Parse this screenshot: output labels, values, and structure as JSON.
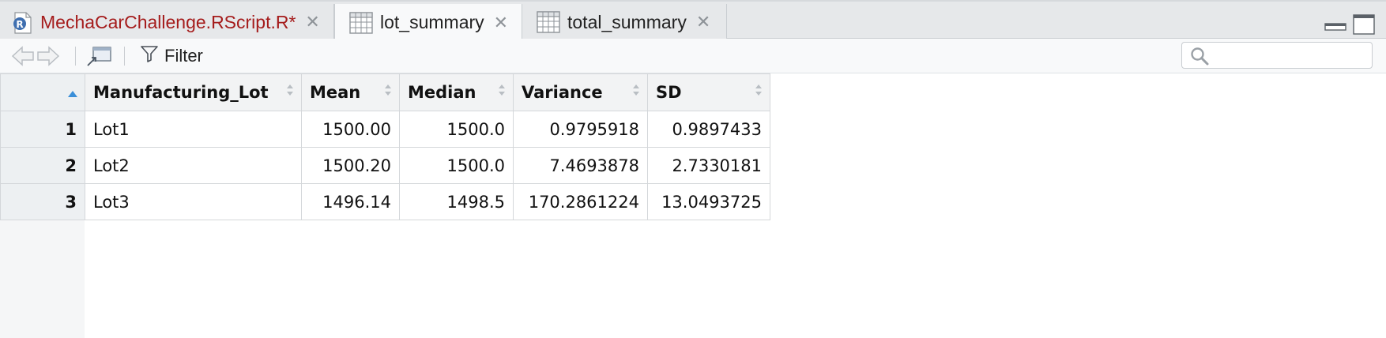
{
  "tabs": [
    {
      "label": "MechaCarChallenge.RScript.R*",
      "icon": "r-script-icon",
      "color": "#a51c1c",
      "active": false
    },
    {
      "label": "lot_summary",
      "icon": "data-grid-icon",
      "active": true
    },
    {
      "label": "total_summary",
      "icon": "data-grid-icon",
      "active": false
    }
  ],
  "toolbar": {
    "filter_label": "Filter",
    "search_value": ""
  },
  "table": {
    "columns": [
      "Manufacturing_Lot",
      "Mean",
      "Median",
      "Variance",
      "SD"
    ],
    "rows": [
      {
        "index": "1",
        "cells": [
          "Lot1",
          "1500.00",
          "1500.0",
          "0.9795918",
          "0.9897433"
        ]
      },
      {
        "index": "2",
        "cells": [
          "Lot2",
          "1500.20",
          "1500.0",
          "7.4693878",
          "2.7330181"
        ]
      },
      {
        "index": "3",
        "cells": [
          "Lot3",
          "1496.14",
          "1498.5",
          "170.2861224",
          "13.0493725"
        ]
      }
    ]
  },
  "colors": {
    "accent": "#3b8fd8",
    "modified_script_tab": "#a51c1c"
  }
}
